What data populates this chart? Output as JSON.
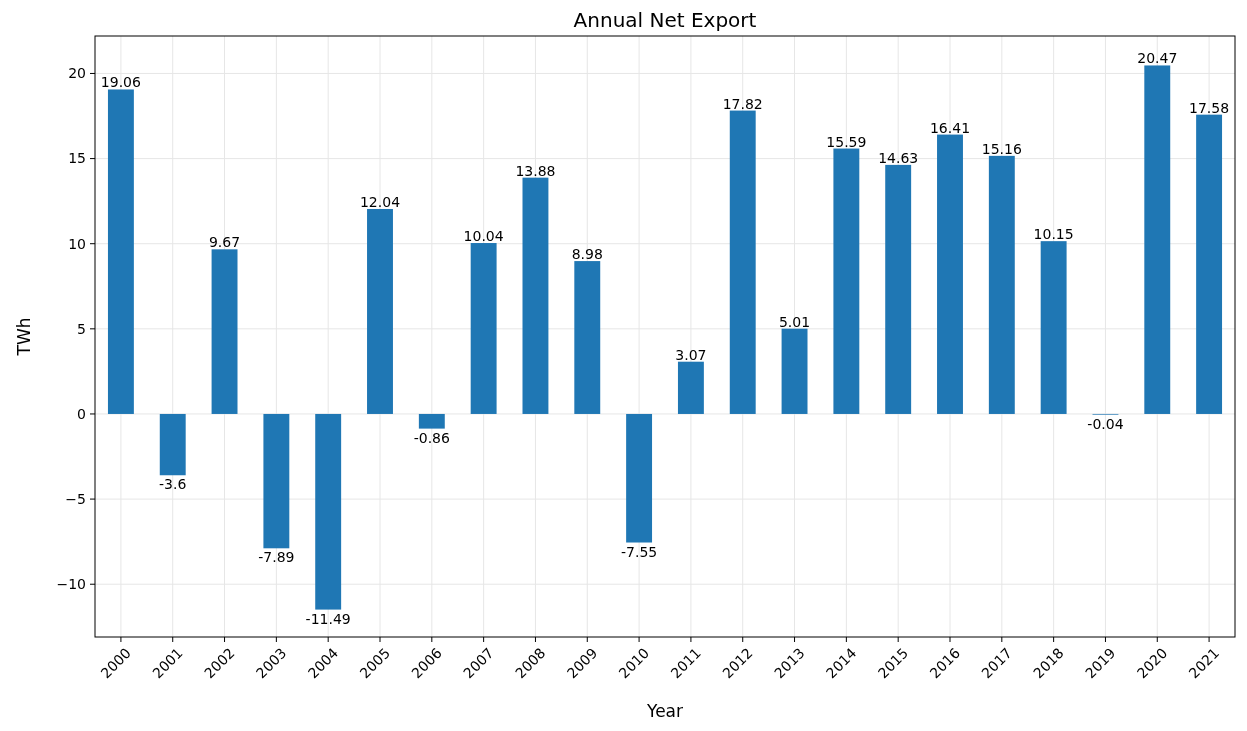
{
  "chart_data": {
    "type": "bar",
    "title": "Annual Net Export",
    "xlabel": "Year",
    "ylabel": "TWh",
    "categories": [
      "2000",
      "2001",
      "2002",
      "2003",
      "2004",
      "2005",
      "2006",
      "2007",
      "2008",
      "2009",
      "2010",
      "2011",
      "2012",
      "2013",
      "2014",
      "2015",
      "2016",
      "2017",
      "2018",
      "2019",
      "2020",
      "2021"
    ],
    "series": [
      {
        "color": "#1f77b4",
        "values": [
          19.06,
          -3.6,
          9.67,
          -7.89,
          -11.49,
          12.04,
          -0.86,
          10.04,
          13.88,
          8.98,
          -7.55,
          3.07,
          17.82,
          5.01,
          15.59,
          14.63,
          16.41,
          15.16,
          10.15,
          -0.04,
          20.47,
          17.58
        ]
      }
    ],
    "ylim": [
      -13.1,
      22.2
    ],
    "yticks": [
      -10,
      -5,
      0,
      5,
      10,
      15,
      20
    ],
    "grid": true,
    "data_labels": true
  }
}
